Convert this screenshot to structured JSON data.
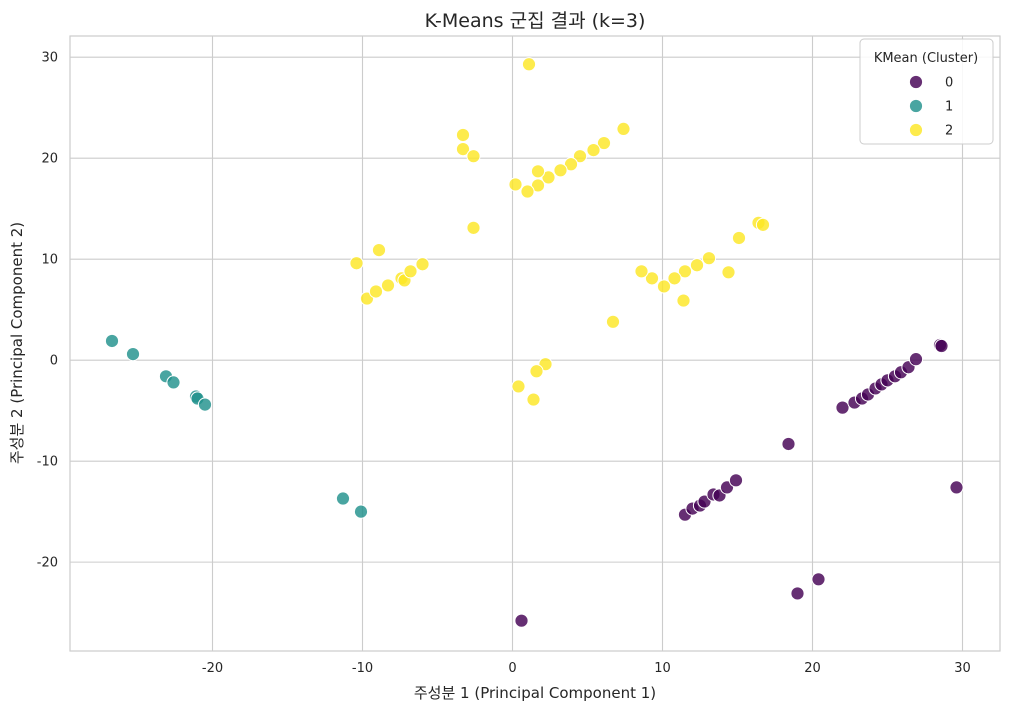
{
  "chart_data": {
    "type": "scatter",
    "title": "K-Means 군집 결과 (k=3)",
    "xlabel": "주성분 1 (Principal Component 1)",
    "ylabel": "주성분 2 (Principal Component 2)",
    "xlim": [
      -29.5,
      32.5
    ],
    "ylim": [
      -28.8,
      32.1
    ],
    "xticks": [
      -20,
      -10,
      0,
      10,
      20,
      30
    ],
    "yticks": [
      -20,
      -10,
      0,
      10,
      20,
      30
    ],
    "grid": true,
    "legend": {
      "title": "KMean (Cluster)",
      "position": "top-right"
    },
    "series": [
      {
        "name": "0",
        "color": "#440154",
        "points": [
          [
            22.0,
            -4.7
          ],
          [
            22.8,
            -4.2
          ],
          [
            23.3,
            -3.8
          ],
          [
            23.7,
            -3.4
          ],
          [
            24.2,
            -2.8
          ],
          [
            24.6,
            -2.4
          ],
          [
            25.0,
            -2.0
          ],
          [
            25.5,
            -1.6
          ],
          [
            25.9,
            -1.2
          ],
          [
            26.4,
            -0.7
          ],
          [
            26.9,
            0.1
          ],
          [
            28.5,
            1.5
          ],
          [
            28.6,
            1.4
          ],
          [
            11.5,
            -15.3
          ],
          [
            12.0,
            -14.7
          ],
          [
            12.5,
            -14.4
          ],
          [
            12.8,
            -14.0
          ],
          [
            13.4,
            -13.3
          ],
          [
            13.8,
            -13.4
          ],
          [
            14.3,
            -12.6
          ],
          [
            14.9,
            -11.9
          ],
          [
            18.4,
            -8.3
          ],
          [
            20.4,
            -21.7
          ],
          [
            19.0,
            -23.1
          ],
          [
            29.6,
            -12.6
          ],
          [
            0.6,
            -25.8
          ]
        ]
      },
      {
        "name": "1",
        "color": "#21918c",
        "points": [
          [
            -26.7,
            1.9
          ],
          [
            -25.3,
            0.6
          ],
          [
            -23.1,
            -1.6
          ],
          [
            -22.6,
            -2.2
          ],
          [
            -21.1,
            -3.6
          ],
          [
            -21.0,
            -3.8
          ],
          [
            -20.5,
            -4.4
          ],
          [
            -11.3,
            -13.7
          ],
          [
            -10.1,
            -15.0
          ]
        ]
      },
      {
        "name": "2",
        "color": "#fde725",
        "points": [
          [
            1.1,
            29.3
          ],
          [
            -3.3,
            22.3
          ],
          [
            -3.3,
            20.9
          ],
          [
            -2.6,
            20.2
          ],
          [
            7.4,
            22.9
          ],
          [
            6.1,
            21.5
          ],
          [
            5.4,
            20.8
          ],
          [
            4.5,
            20.2
          ],
          [
            3.9,
            19.4
          ],
          [
            3.2,
            18.8
          ],
          [
            2.4,
            18.1
          ],
          [
            1.7,
            18.7
          ],
          [
            1.7,
            17.3
          ],
          [
            0.2,
            17.4
          ],
          [
            1.0,
            16.7
          ],
          [
            -2.6,
            13.1
          ],
          [
            -10.4,
            9.6
          ],
          [
            -8.9,
            10.9
          ],
          [
            -9.7,
            6.1
          ],
          [
            -9.1,
            6.8
          ],
          [
            -8.3,
            7.4
          ],
          [
            -7.4,
            8.1
          ],
          [
            -7.2,
            7.9
          ],
          [
            -6.8,
            8.8
          ],
          [
            -6.0,
            9.5
          ],
          [
            16.4,
            13.6
          ],
          [
            16.7,
            13.4
          ],
          [
            15.1,
            12.1
          ],
          [
            13.1,
            10.1
          ],
          [
            12.3,
            9.4
          ],
          [
            11.5,
            8.8
          ],
          [
            10.8,
            8.1
          ],
          [
            10.1,
            7.3
          ],
          [
            9.3,
            8.1
          ],
          [
            8.6,
            8.8
          ],
          [
            14.4,
            8.7
          ],
          [
            11.4,
            5.9
          ],
          [
            6.7,
            3.8
          ],
          [
            2.2,
            -0.4
          ],
          [
            1.6,
            -1.1
          ],
          [
            0.4,
            -2.6
          ],
          [
            1.4,
            -3.9
          ]
        ]
      }
    ]
  }
}
